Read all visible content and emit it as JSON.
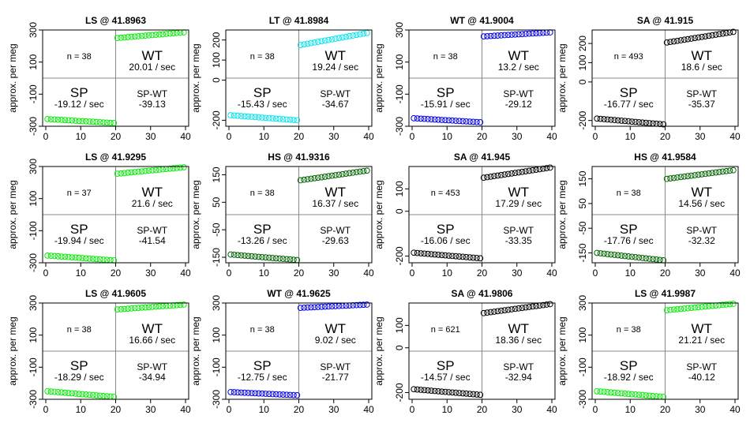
{
  "figure": {
    "ylabel": "approx. per meg"
  },
  "chart_data": [
    {
      "type": "scatter",
      "title": "LS @ 41.8963",
      "ylabel": "approx. per meg",
      "xlim": [
        0,
        40
      ],
      "ylim": [
        -300,
        300
      ],
      "xticks": [
        0,
        10,
        20,
        30,
        40
      ],
      "yticks": [
        -300,
        -100,
        100,
        300
      ],
      "color": "#00ee00",
      "n_label": "n = 38",
      "wt_label": "WT",
      "wt_rate": "20.01 / sec",
      "sp_label": "SP",
      "sp_rate": "-19.12 / sec",
      "diff_label": "SP-WT",
      "diff_value": "-39.13",
      "y_start": -255,
      "y_split": -280,
      "y_jump": 250,
      "y_end": 285
    },
    {
      "type": "scatter",
      "title": "LT @ 41.8984",
      "ylabel": "approx. per meg",
      "xlim": [
        0,
        40
      ],
      "ylim": [
        -230,
        250
      ],
      "xticks": [
        0,
        10,
        20,
        30,
        40
      ],
      "yticks": [
        -200,
        0,
        100,
        200
      ],
      "color": "#00e5ee",
      "n_label": "n = 38",
      "wt_label": "WT",
      "wt_rate": "19.24 / sec",
      "sp_label": "SP",
      "sp_rate": "-15.43 / sec",
      "diff_label": "SP-WT",
      "diff_value": "-34.67",
      "y_start": -175,
      "y_split": -200,
      "y_jump": 175,
      "y_end": 235
    },
    {
      "type": "scatter",
      "title": "WT @ 41.9004",
      "ylabel": "approx. per meg",
      "xlim": [
        0,
        40
      ],
      "ylim": [
        -300,
        300
      ],
      "xticks": [
        0,
        10,
        20,
        30,
        40
      ],
      "yticks": [
        -300,
        -100,
        100,
        300
      ],
      "color": "#0000ee",
      "n_label": "n = 38",
      "wt_label": "WT",
      "wt_rate": "13.2 / sec",
      "sp_label": "SP",
      "sp_rate": "-15.91 / sec",
      "diff_label": "SP-WT",
      "diff_value": "-29.12",
      "y_start": -250,
      "y_split": -275,
      "y_jump": 260,
      "y_end": 285
    },
    {
      "type": "scatter",
      "title": "SA @ 41.915",
      "ylabel": "approx. per meg",
      "xlim": [
        0,
        40
      ],
      "ylim": [
        -230,
        270
      ],
      "xticks": [
        0,
        10,
        20,
        30,
        40
      ],
      "yticks": [
        -200,
        0,
        100,
        200
      ],
      "color": "#000000",
      "n_label": "n = 493",
      "wt_label": "WT",
      "wt_rate": "18.6 / sec",
      "sp_label": "SP",
      "sp_rate": "-16.77 / sec",
      "diff_label": "SP-WT",
      "diff_value": "-35.37",
      "y_start": -190,
      "y_split": -220,
      "y_jump": 205,
      "y_end": 260
    },
    {
      "type": "scatter",
      "title": "LS @ 41.9295",
      "ylabel": "approx. per meg",
      "xlim": [
        0,
        40
      ],
      "ylim": [
        -300,
        300
      ],
      "xticks": [
        0,
        10,
        20,
        30,
        40
      ],
      "yticks": [
        -300,
        -100,
        100,
        300
      ],
      "color": "#00ee00",
      "n_label": "n = 37",
      "wt_label": "WT",
      "wt_rate": "21.6 / sec",
      "sp_label": "SP",
      "sp_rate": "-19.94 / sec",
      "diff_label": "SP-WT",
      "diff_value": "-41.54",
      "y_start": -255,
      "y_split": -285,
      "y_jump": 255,
      "y_end": 295
    },
    {
      "type": "scatter",
      "title": "HS @ 41.9316",
      "ylabel": "approx. per meg",
      "xlim": [
        0,
        40
      ],
      "ylim": [
        -170,
        180
      ],
      "xticks": [
        0,
        10,
        20,
        30,
        40
      ],
      "yticks": [
        -150,
        -50,
        50,
        150
      ],
      "color": "#006400",
      "n_label": "n = 38",
      "wt_label": "WT",
      "wt_rate": "16.37 / sec",
      "sp_label": "SP",
      "sp_rate": "-13.26 / sec",
      "diff_label": "SP-WT",
      "diff_value": "-29.63",
      "y_start": -140,
      "y_split": -160,
      "y_jump": 130,
      "y_end": 165
    },
    {
      "type": "scatter",
      "title": "SA @ 41.945",
      "ylabel": "approx. per meg",
      "xlim": [
        0,
        40
      ],
      "ylim": [
        -230,
        200
      ],
      "xticks": [
        0,
        10,
        20,
        30,
        40
      ],
      "yticks": [
        -200,
        0,
        100
      ],
      "color": "#000000",
      "n_label": "n = 453",
      "wt_label": "WT",
      "wt_rate": "17.29 / sec",
      "sp_label": "SP",
      "sp_rate": "-16.06 / sec",
      "diff_label": "SP-WT",
      "diff_value": "-33.35",
      "y_start": -185,
      "y_split": -210,
      "y_jump": 150,
      "y_end": 195
    },
    {
      "type": "scatter",
      "title": "HS @ 41.9584",
      "ylabel": "approx. per meg",
      "xlim": [
        0,
        40
      ],
      "ylim": [
        -190,
        200
      ],
      "xticks": [
        0,
        10,
        20,
        30,
        40
      ],
      "yticks": [
        -150,
        -50,
        50,
        150
      ],
      "color": "#006400",
      "n_label": "n = 38",
      "wt_label": "WT",
      "wt_rate": "14.56 / sec",
      "sp_label": "SP",
      "sp_rate": "-17.76 / sec",
      "diff_label": "SP-WT",
      "diff_value": "-32.32",
      "y_start": -150,
      "y_split": -180,
      "y_jump": 150,
      "y_end": 185
    },
    {
      "type": "scatter",
      "title": "LS @ 41.9605",
      "ylabel": "approx. per meg",
      "xlim": [
        0,
        40
      ],
      "ylim": [
        -300,
        300
      ],
      "xticks": [
        0,
        10,
        20,
        30,
        40
      ],
      "yticks": [
        -300,
        -100,
        100,
        300
      ],
      "color": "#00ee00",
      "n_label": "n = 38",
      "wt_label": "WT",
      "wt_rate": "16.66 / sec",
      "sp_label": "SP",
      "sp_rate": "-18.29 / sec",
      "diff_label": "SP-WT",
      "diff_value": "-34.94",
      "y_start": -250,
      "y_split": -285,
      "y_jump": 260,
      "y_end": 290
    },
    {
      "type": "scatter",
      "title": "WT @ 41.9625",
      "ylabel": "approx. per meg",
      "xlim": [
        0,
        40
      ],
      "ylim": [
        -300,
        300
      ],
      "xticks": [
        0,
        10,
        20,
        30,
        40
      ],
      "yticks": [
        -300,
        -100,
        100,
        300
      ],
      "color": "#0000ee",
      "n_label": "n = 38",
      "wt_label": "WT",
      "wt_rate": "9.02 / sec",
      "sp_label": "SP",
      "sp_rate": "-12.75 / sec",
      "diff_label": "SP-WT",
      "diff_value": "-21.77",
      "y_start": -255,
      "y_split": -275,
      "y_jump": 270,
      "y_end": 290
    },
    {
      "type": "scatter",
      "title": "SA @ 41.9806",
      "ylabel": "approx. per meg",
      "xlim": [
        0,
        40
      ],
      "ylim": [
        -230,
        200
      ],
      "xticks": [
        0,
        10,
        20,
        30,
        40
      ],
      "yticks": [
        -200,
        0,
        100
      ],
      "color": "#000000",
      "n_label": "n = 621",
      "wt_label": "WT",
      "wt_rate": "18.36 / sec",
      "sp_label": "SP",
      "sp_rate": "-14.57 / sec",
      "diff_label": "SP-WT",
      "diff_value": "-32.94",
      "y_start": -185,
      "y_split": -210,
      "y_jump": 155,
      "y_end": 195
    },
    {
      "type": "scatter",
      "title": "LS @ 41.9987",
      "ylabel": "approx. per meg",
      "xlim": [
        0,
        40
      ],
      "ylim": [
        -300,
        300
      ],
      "xticks": [
        0,
        10,
        20,
        30,
        40
      ],
      "yticks": [
        -300,
        -100,
        100,
        300
      ],
      "color": "#00ee00",
      "n_label": "n = 38",
      "wt_label": "WT",
      "wt_rate": "21.21 / sec",
      "sp_label": "SP",
      "sp_rate": "-18.92 / sec",
      "diff_label": "SP-WT",
      "diff_value": "-40.12",
      "y_start": -250,
      "y_split": -285,
      "y_jump": 255,
      "y_end": 295
    }
  ]
}
